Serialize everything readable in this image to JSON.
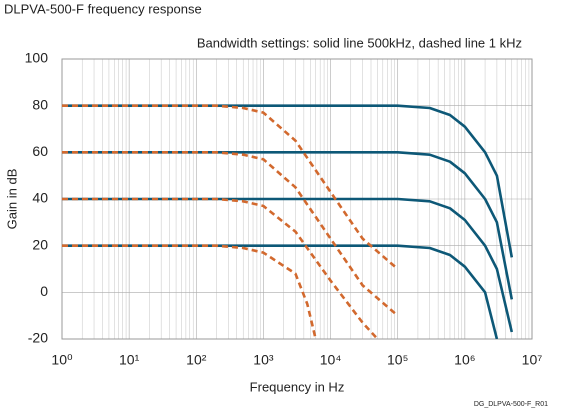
{
  "chart_data": {
    "type": "line",
    "title": "DLPVA-500-F frequency response",
    "annotation": "Bandwidth settings: solid line 500kHz, dashed line 1 kHz",
    "x_label": "Frequency in Hz",
    "y_label": "Gain in dB",
    "footnote": "DG_DLPVA-500-F_R01",
    "xscale": "log",
    "xlim": [
      1,
      10000000
    ],
    "ylim": [
      -20,
      100
    ],
    "xticks": [
      {
        "value": 1,
        "label": "10⁰"
      },
      {
        "value": 10,
        "label": "10¹"
      },
      {
        "value": 100,
        "label": "10²"
      },
      {
        "value": 1000,
        "label": "10³"
      },
      {
        "value": 10000,
        "label": "10⁴"
      },
      {
        "value": 100000,
        "label": "10⁵"
      },
      {
        "value": 1000000,
        "label": "10⁶"
      },
      {
        "value": 10000000,
        "label": "10⁷"
      }
    ],
    "xminorticks": [
      2,
      3,
      4,
      5,
      6,
      7,
      8,
      9,
      20,
      30,
      40,
      50,
      60,
      70,
      80,
      90,
      200,
      300,
      400,
      500,
      600,
      700,
      800,
      900,
      2000,
      3000,
      4000,
      5000,
      6000,
      7000,
      8000,
      9000,
      20000,
      30000,
      40000,
      50000,
      60000,
      70000,
      80000,
      90000,
      200000,
      300000,
      400000,
      500000,
      600000,
      700000,
      800000,
      900000,
      2000000,
      3000000,
      4000000,
      5000000,
      6000000,
      7000000,
      8000000,
      9000000
    ],
    "yticks": [
      -20,
      0,
      20,
      40,
      60,
      80,
      100
    ],
    "grid": true,
    "series": [
      {
        "color": "#0d5877",
        "dash": false,
        "x": [
          1,
          100000,
          300000,
          600000,
          1000000,
          2000000,
          3000000,
          5000000
        ],
        "values": [
          80,
          80,
          79,
          76,
          71,
          60,
          50,
          15
        ]
      },
      {
        "color": "#0d5877",
        "dash": false,
        "x": [
          1,
          100000,
          300000,
          600000,
          1000000,
          2000000,
          3000000,
          5000000
        ],
        "values": [
          60,
          60,
          59,
          56,
          51,
          40,
          30,
          -3
        ]
      },
      {
        "color": "#0d5877",
        "dash": false,
        "x": [
          1,
          100000,
          300000,
          600000,
          1000000,
          2000000,
          3000000,
          5000000
        ],
        "values": [
          40,
          40,
          39,
          36,
          31,
          20,
          10,
          -17
        ]
      },
      {
        "color": "#0d5877",
        "dash": false,
        "x": [
          1,
          100000,
          300000,
          600000,
          1000000,
          2000000,
          3000000
        ],
        "values": [
          20,
          20,
          19,
          16,
          11,
          0,
          -20
        ]
      },
      {
        "color": "#d2692e",
        "dash": true,
        "x": [
          1,
          200,
          500,
          1000,
          3000,
          10000,
          30000,
          100000
        ],
        "values": [
          80,
          80,
          79,
          77,
          65,
          43,
          23,
          10
        ]
      },
      {
        "color": "#d2692e",
        "dash": true,
        "x": [
          1,
          200,
          500,
          1000,
          3000,
          10000,
          30000,
          100000
        ],
        "values": [
          60,
          60,
          59,
          57,
          45,
          23,
          3,
          -10
        ]
      },
      {
        "color": "#d2692e",
        "dash": true,
        "x": [
          1,
          200,
          500,
          1000,
          3000,
          10000,
          30000,
          50000
        ],
        "values": [
          40,
          40,
          39,
          37,
          26,
          5,
          -13,
          -20
        ]
      },
      {
        "color": "#d2692e",
        "dash": true,
        "x": [
          1,
          200,
          500,
          1000,
          3000,
          4500,
          6000
        ],
        "values": [
          20,
          20,
          19,
          17,
          8,
          -5,
          -20
        ]
      }
    ]
  }
}
